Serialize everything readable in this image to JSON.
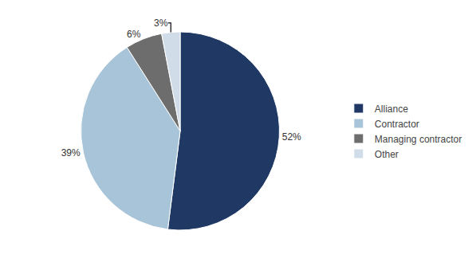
{
  "chart_data": {
    "type": "pie",
    "categories": [
      "Alliance",
      "Contractor",
      "Managing contractor",
      "Other"
    ],
    "values": [
      52,
      39,
      6,
      3
    ],
    "value_labels": [
      "52%",
      "39%",
      "6%",
      "3%"
    ],
    "colors": [
      "#1f3864",
      "#a8c4d8",
      "#6d6d6d",
      "#d0dde8"
    ],
    "data_labels": true,
    "legend": "right"
  }
}
